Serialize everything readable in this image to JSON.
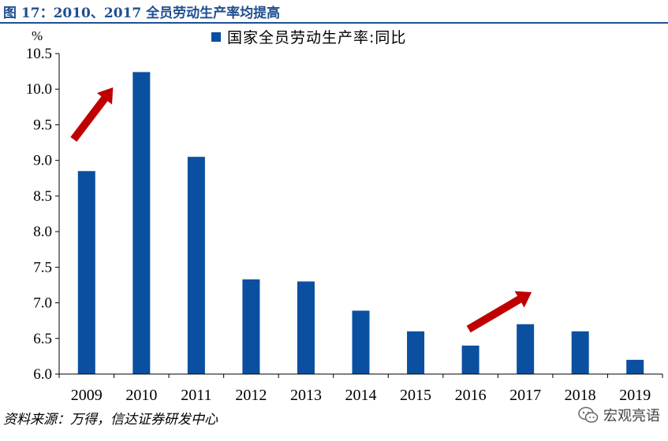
{
  "figure": {
    "title": "图 17：2010、2017 全员劳动生产率均提高",
    "source": "资料来源：万得，信达证券研发中心",
    "watermark": "宏观亮语"
  },
  "colors": {
    "bar": "#0b4fa0",
    "arrow": "#c00000",
    "title": "#1f4f8f"
  },
  "chart_data": {
    "type": "bar",
    "categories": [
      "2009",
      "2010",
      "2011",
      "2012",
      "2013",
      "2014",
      "2015",
      "2016",
      "2017",
      "2018",
      "2019"
    ],
    "series": [
      {
        "name": "国家全员劳动生产率:同比",
        "values": [
          8.85,
          10.24,
          9.05,
          7.33,
          7.3,
          6.89,
          6.6,
          6.4,
          6.7,
          6.6,
          6.2
        ]
      }
    ],
    "ylabel": "%",
    "ylim": [
      6.0,
      10.5
    ],
    "yticks": [
      "6.0",
      "6.5",
      "7.0",
      "7.5",
      "8.0",
      "8.5",
      "9.0",
      "9.5",
      "10.0",
      "10.5"
    ],
    "grid": false,
    "legend": "top-center",
    "annotations": [
      {
        "type": "arrow",
        "near": "2010",
        "direction": "up-right"
      },
      {
        "type": "arrow",
        "near": "2017",
        "direction": "up-right"
      }
    ]
  }
}
